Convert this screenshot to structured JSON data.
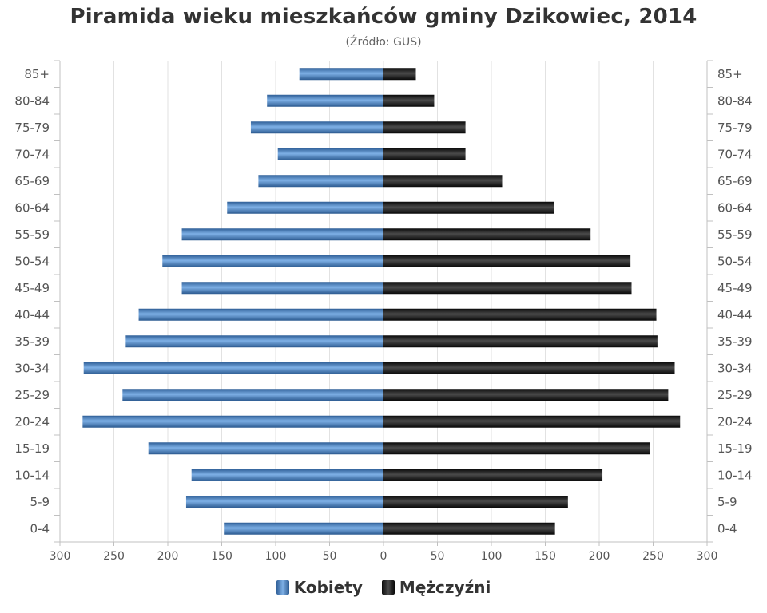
{
  "chart_data": {
    "type": "bar",
    "title": "Piramida wieku mieszkańców gminy Dzikowiec, 2014",
    "subtitle": "(Źródło: GUS)",
    "categories": [
      "85+",
      "80-84",
      "75-79",
      "70-74",
      "65-69",
      "60-64",
      "55-59",
      "50-54",
      "45-49",
      "40-44",
      "35-39",
      "30-34",
      "25-29",
      "20-24",
      "15-19",
      "10-14",
      "5-9",
      "0-4"
    ],
    "series": [
      {
        "name": "Kobiety",
        "color": "#4a86c5",
        "values": [
          78,
          108,
          123,
          98,
          116,
          145,
          187,
          205,
          187,
          227,
          239,
          278,
          242,
          279,
          218,
          178,
          183,
          148
        ]
      },
      {
        "name": "Mężczyźni",
        "color": "#222222",
        "values": [
          30,
          47,
          76,
          76,
          110,
          158,
          192,
          229,
          230,
          253,
          254,
          270,
          264,
          275,
          247,
          203,
          171,
          159
        ]
      }
    ],
    "x_ticks": [
      "300",
      "250",
      "200",
      "150",
      "100",
      "50",
      "0",
      "50",
      "100",
      "150",
      "200",
      "250",
      "300"
    ],
    "xlim": [
      -300,
      300
    ],
    "grid": true,
    "legend_position": "bottom"
  }
}
